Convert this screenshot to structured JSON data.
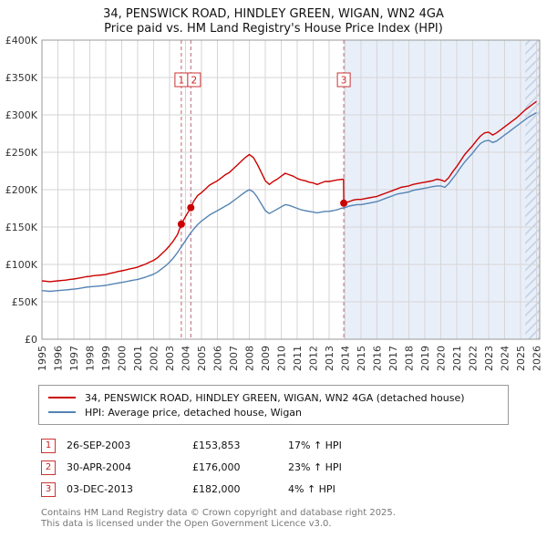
{
  "chart_data": {
    "type": "line",
    "title": "34, PENSWICK ROAD, HINDLEY GREEN, WIGAN, WN2 4GA",
    "subtitle": "Price paid vs. HM Land Registry's House Price Index (HPI)",
    "x_range": [
      1995,
      2026.2
    ],
    "y_range": [
      0,
      400000
    ],
    "y_ticks": [
      0,
      50000,
      100000,
      150000,
      200000,
      250000,
      300000,
      350000,
      400000
    ],
    "y_tick_labels": [
      "£0",
      "£50K",
      "£100K",
      "£150K",
      "£200K",
      "£250K",
      "£300K",
      "£350K",
      "£400K"
    ],
    "x_ticks": [
      1995,
      1996,
      1997,
      1998,
      1999,
      2000,
      2001,
      2002,
      2003,
      2004,
      2005,
      2006,
      2007,
      2008,
      2009,
      2010,
      2011,
      2012,
      2013,
      2014,
      2015,
      2016,
      2017,
      2018,
      2019,
      2020,
      2021,
      2022,
      2023,
      2024,
      2025,
      2026
    ],
    "grid": true,
    "legend_position": "bottom",
    "shaded_from_x": 2013.92,
    "hatch_from_x": 2025.3,
    "colors": {
      "price_paid": "#cc0000",
      "hpi": "#5584b4",
      "shaded": "#e9eff9",
      "hatch_line": "#c3d3e8",
      "grid": "#d6d6d6",
      "axis_border": "#999999",
      "sale_dash": "#bb6677",
      "sale_box_border": "#cc3333",
      "sale_box_text": "#cc2222"
    },
    "series": [
      {
        "name": "34, PENSWICK ROAD, HINDLEY GREEN, WIGAN, WN2 4GA (detached house)",
        "color": "#cc0000",
        "points": [
          [
            1995,
            78000
          ],
          [
            1995.25,
            77500
          ],
          [
            1995.5,
            77000
          ],
          [
            1995.75,
            77500
          ],
          [
            1996,
            78000
          ],
          [
            1996.25,
            78500
          ],
          [
            1996.5,
            79000
          ],
          [
            1996.75,
            80000
          ],
          [
            1997,
            80500
          ],
          [
            1997.25,
            81500
          ],
          [
            1997.5,
            82500
          ],
          [
            1997.75,
            83500
          ],
          [
            1998,
            84000
          ],
          [
            1998.25,
            85000
          ],
          [
            1998.5,
            85500
          ],
          [
            1998.75,
            86000
          ],
          [
            1999,
            86500
          ],
          [
            1999.25,
            88000
          ],
          [
            1999.5,
            89000
          ],
          [
            1999.75,
            90500
          ],
          [
            2000,
            91500
          ],
          [
            2000.25,
            92500
          ],
          [
            2000.5,
            94000
          ],
          [
            2000.75,
            95000
          ],
          [
            2001,
            96500
          ],
          [
            2001.25,
            98500
          ],
          [
            2001.5,
            100500
          ],
          [
            2001.75,
            103000
          ],
          [
            2002,
            105500
          ],
          [
            2002.25,
            109000
          ],
          [
            2002.5,
            114000
          ],
          [
            2002.75,
            119000
          ],
          [
            2003,
            125000
          ],
          [
            2003.25,
            132000
          ],
          [
            2003.5,
            140000
          ],
          [
            2003.74,
            153853
          ],
          [
            2004,
            164000
          ],
          [
            2004.33,
            176000
          ],
          [
            2004.5,
            184000
          ],
          [
            2004.75,
            192000
          ],
          [
            2005,
            196000
          ],
          [
            2005.25,
            201000
          ],
          [
            2005.5,
            206000
          ],
          [
            2005.75,
            209000
          ],
          [
            2006,
            212000
          ],
          [
            2006.25,
            216000
          ],
          [
            2006.5,
            220000
          ],
          [
            2006.75,
            223000
          ],
          [
            2007,
            228000
          ],
          [
            2007.25,
            233000
          ],
          [
            2007.5,
            238000
          ],
          [
            2007.75,
            243000
          ],
          [
            2008,
            247000
          ],
          [
            2008.25,
            243000
          ],
          [
            2008.5,
            234000
          ],
          [
            2008.75,
            223000
          ],
          [
            2009,
            212000
          ],
          [
            2009.25,
            207000
          ],
          [
            2009.5,
            211000
          ],
          [
            2009.75,
            214000
          ],
          [
            2010,
            218000
          ],
          [
            2010.25,
            222000
          ],
          [
            2010.5,
            220000
          ],
          [
            2010.75,
            218000
          ],
          [
            2011,
            215000
          ],
          [
            2011.25,
            213000
          ],
          [
            2011.5,
            212000
          ],
          [
            2011.75,
            210000
          ],
          [
            2012,
            209000
          ],
          [
            2012.25,
            207000
          ],
          [
            2012.5,
            209000
          ],
          [
            2012.75,
            211000
          ],
          [
            2013,
            211000
          ],
          [
            2013.25,
            212000
          ],
          [
            2013.5,
            213000
          ],
          [
            2013.9,
            214000
          ],
          [
            2013.92,
            182000
          ],
          [
            2014.25,
            184000
          ],
          [
            2014.5,
            186000
          ],
          [
            2014.75,
            187000
          ],
          [
            2015,
            187000
          ],
          [
            2015.25,
            188000
          ],
          [
            2015.5,
            189000
          ],
          [
            2015.75,
            190000
          ],
          [
            2016,
            191000
          ],
          [
            2016.25,
            193000
          ],
          [
            2016.5,
            195000
          ],
          [
            2016.75,
            197000
          ],
          [
            2017,
            199000
          ],
          [
            2017.25,
            201000
          ],
          [
            2017.5,
            203000
          ],
          [
            2017.75,
            204000
          ],
          [
            2018,
            205000
          ],
          [
            2018.25,
            207000
          ],
          [
            2018.5,
            208000
          ],
          [
            2018.75,
            209000
          ],
          [
            2019,
            210000
          ],
          [
            2019.25,
            211000
          ],
          [
            2019.5,
            212000
          ],
          [
            2019.75,
            214000
          ],
          [
            2020,
            213000
          ],
          [
            2020.25,
            211000
          ],
          [
            2020.5,
            216000
          ],
          [
            2020.75,
            224000
          ],
          [
            2021,
            231000
          ],
          [
            2021.25,
            239000
          ],
          [
            2021.5,
            247000
          ],
          [
            2021.75,
            253000
          ],
          [
            2022,
            259000
          ],
          [
            2022.25,
            266000
          ],
          [
            2022.5,
            272000
          ],
          [
            2022.75,
            276000
          ],
          [
            2023,
            277000
          ],
          [
            2023.25,
            273000
          ],
          [
            2023.5,
            276000
          ],
          [
            2023.75,
            280000
          ],
          [
            2024,
            284000
          ],
          [
            2024.25,
            288000
          ],
          [
            2024.5,
            292000
          ],
          [
            2024.75,
            296000
          ],
          [
            2025,
            301000
          ],
          [
            2025.25,
            306000
          ],
          [
            2025.5,
            310000
          ],
          [
            2025.75,
            314000
          ],
          [
            2026,
            318000
          ]
        ]
      },
      {
        "name": "HPI: Average price, detached house, Wigan",
        "color": "#5584b4",
        "points": [
          [
            1995,
            65000
          ],
          [
            1995.25,
            64500
          ],
          [
            1995.5,
            64000
          ],
          [
            1995.75,
            64500
          ],
          [
            1996,
            65000
          ],
          [
            1996.25,
            65500
          ],
          [
            1996.5,
            66000
          ],
          [
            1996.75,
            66500
          ],
          [
            1997,
            67000
          ],
          [
            1997.25,
            67500
          ],
          [
            1997.5,
            68500
          ],
          [
            1997.75,
            69500
          ],
          [
            1998,
            70000
          ],
          [
            1998.25,
            70500
          ],
          [
            1998.5,
            71000
          ],
          [
            1998.75,
            71500
          ],
          [
            1999,
            72000
          ],
          [
            1999.25,
            73000
          ],
          [
            1999.5,
            74000
          ],
          [
            1999.75,
            75000
          ],
          [
            2000,
            76000
          ],
          [
            2000.25,
            77000
          ],
          [
            2000.5,
            78000
          ],
          [
            2000.75,
            79000
          ],
          [
            2001,
            80000
          ],
          [
            2001.25,
            81500
          ],
          [
            2001.5,
            83000
          ],
          [
            2001.75,
            85000
          ],
          [
            2002,
            87000
          ],
          [
            2002.25,
            90000
          ],
          [
            2002.5,
            94000
          ],
          [
            2002.75,
            98000
          ],
          [
            2003,
            103000
          ],
          [
            2003.25,
            109000
          ],
          [
            2003.5,
            116000
          ],
          [
            2003.75,
            124000
          ],
          [
            2004,
            132000
          ],
          [
            2004.25,
            140000
          ],
          [
            2004.5,
            147000
          ],
          [
            2004.75,
            153000
          ],
          [
            2005,
            158000
          ],
          [
            2005.25,
            162000
          ],
          [
            2005.5,
            166000
          ],
          [
            2005.75,
            169000
          ],
          [
            2006,
            172000
          ],
          [
            2006.25,
            175000
          ],
          [
            2006.5,
            178000
          ],
          [
            2006.75,
            181000
          ],
          [
            2007,
            185000
          ],
          [
            2007.25,
            189000
          ],
          [
            2007.5,
            193000
          ],
          [
            2007.75,
            197000
          ],
          [
            2008,
            200000
          ],
          [
            2008.25,
            197000
          ],
          [
            2008.5,
            190000
          ],
          [
            2008.75,
            181000
          ],
          [
            2009,
            172000
          ],
          [
            2009.25,
            168000
          ],
          [
            2009.5,
            171000
          ],
          [
            2009.75,
            174000
          ],
          [
            2010,
            177000
          ],
          [
            2010.25,
            180000
          ],
          [
            2010.5,
            179000
          ],
          [
            2010.75,
            177000
          ],
          [
            2011,
            175000
          ],
          [
            2011.25,
            173000
          ],
          [
            2011.5,
            172000
          ],
          [
            2011.75,
            171000
          ],
          [
            2012,
            170000
          ],
          [
            2012.25,
            169000
          ],
          [
            2012.5,
            170000
          ],
          [
            2012.75,
            171000
          ],
          [
            2013,
            171000
          ],
          [
            2013.25,
            172000
          ],
          [
            2013.5,
            173000
          ],
          [
            2013.75,
            175000
          ],
          [
            2014,
            176000
          ],
          [
            2014.25,
            178000
          ],
          [
            2014.5,
            179000
          ],
          [
            2014.75,
            180000
          ],
          [
            2015,
            180000
          ],
          [
            2015.25,
            181000
          ],
          [
            2015.5,
            182000
          ],
          [
            2015.75,
            183000
          ],
          [
            2016,
            184000
          ],
          [
            2016.25,
            186000
          ],
          [
            2016.5,
            188000
          ],
          [
            2016.75,
            190000
          ],
          [
            2017,
            192000
          ],
          [
            2017.25,
            194000
          ],
          [
            2017.5,
            195000
          ],
          [
            2017.75,
            196000
          ],
          [
            2018,
            197000
          ],
          [
            2018.25,
            199000
          ],
          [
            2018.5,
            200000
          ],
          [
            2018.75,
            201000
          ],
          [
            2019,
            202000
          ],
          [
            2019.25,
            203000
          ],
          [
            2019.5,
            204000
          ],
          [
            2019.75,
            205000
          ],
          [
            2020,
            205000
          ],
          [
            2020.25,
            203000
          ],
          [
            2020.5,
            208000
          ],
          [
            2020.75,
            215000
          ],
          [
            2021,
            222000
          ],
          [
            2021.25,
            230000
          ],
          [
            2021.5,
            237000
          ],
          [
            2021.75,
            243000
          ],
          [
            2022,
            249000
          ],
          [
            2022.25,
            256000
          ],
          [
            2022.5,
            262000
          ],
          [
            2022.75,
            265000
          ],
          [
            2023,
            266000
          ],
          [
            2023.25,
            263000
          ],
          [
            2023.5,
            265000
          ],
          [
            2023.75,
            269000
          ],
          [
            2024,
            273000
          ],
          [
            2024.25,
            277000
          ],
          [
            2024.5,
            281000
          ],
          [
            2024.75,
            285000
          ],
          [
            2025,
            289000
          ],
          [
            2025.25,
            293000
          ],
          [
            2025.5,
            297000
          ],
          [
            2025.75,
            300000
          ],
          [
            2026,
            303000
          ]
        ]
      }
    ],
    "sales": [
      {
        "label": "1",
        "x": 2003.74,
        "price": 153853,
        "date": "26-SEP-2003",
        "price_text": "£153,853",
        "hpi_text": "17% ↑ HPI"
      },
      {
        "label": "2",
        "x": 2004.33,
        "price": 176000,
        "date": "30-APR-2004",
        "price_text": "£176,000",
        "hpi_text": "23% ↑ HPI"
      },
      {
        "label": "3",
        "x": 2013.92,
        "price": 182000,
        "date": "03-DEC-2013",
        "price_text": "£182,000",
        "hpi_text": "4% ↑ HPI"
      }
    ]
  },
  "footer": {
    "line1": "Contains HM Land Registry data © Crown copyright and database right 2025.",
    "line2": "This data is licensed under the Open Government Licence v3.0."
  }
}
